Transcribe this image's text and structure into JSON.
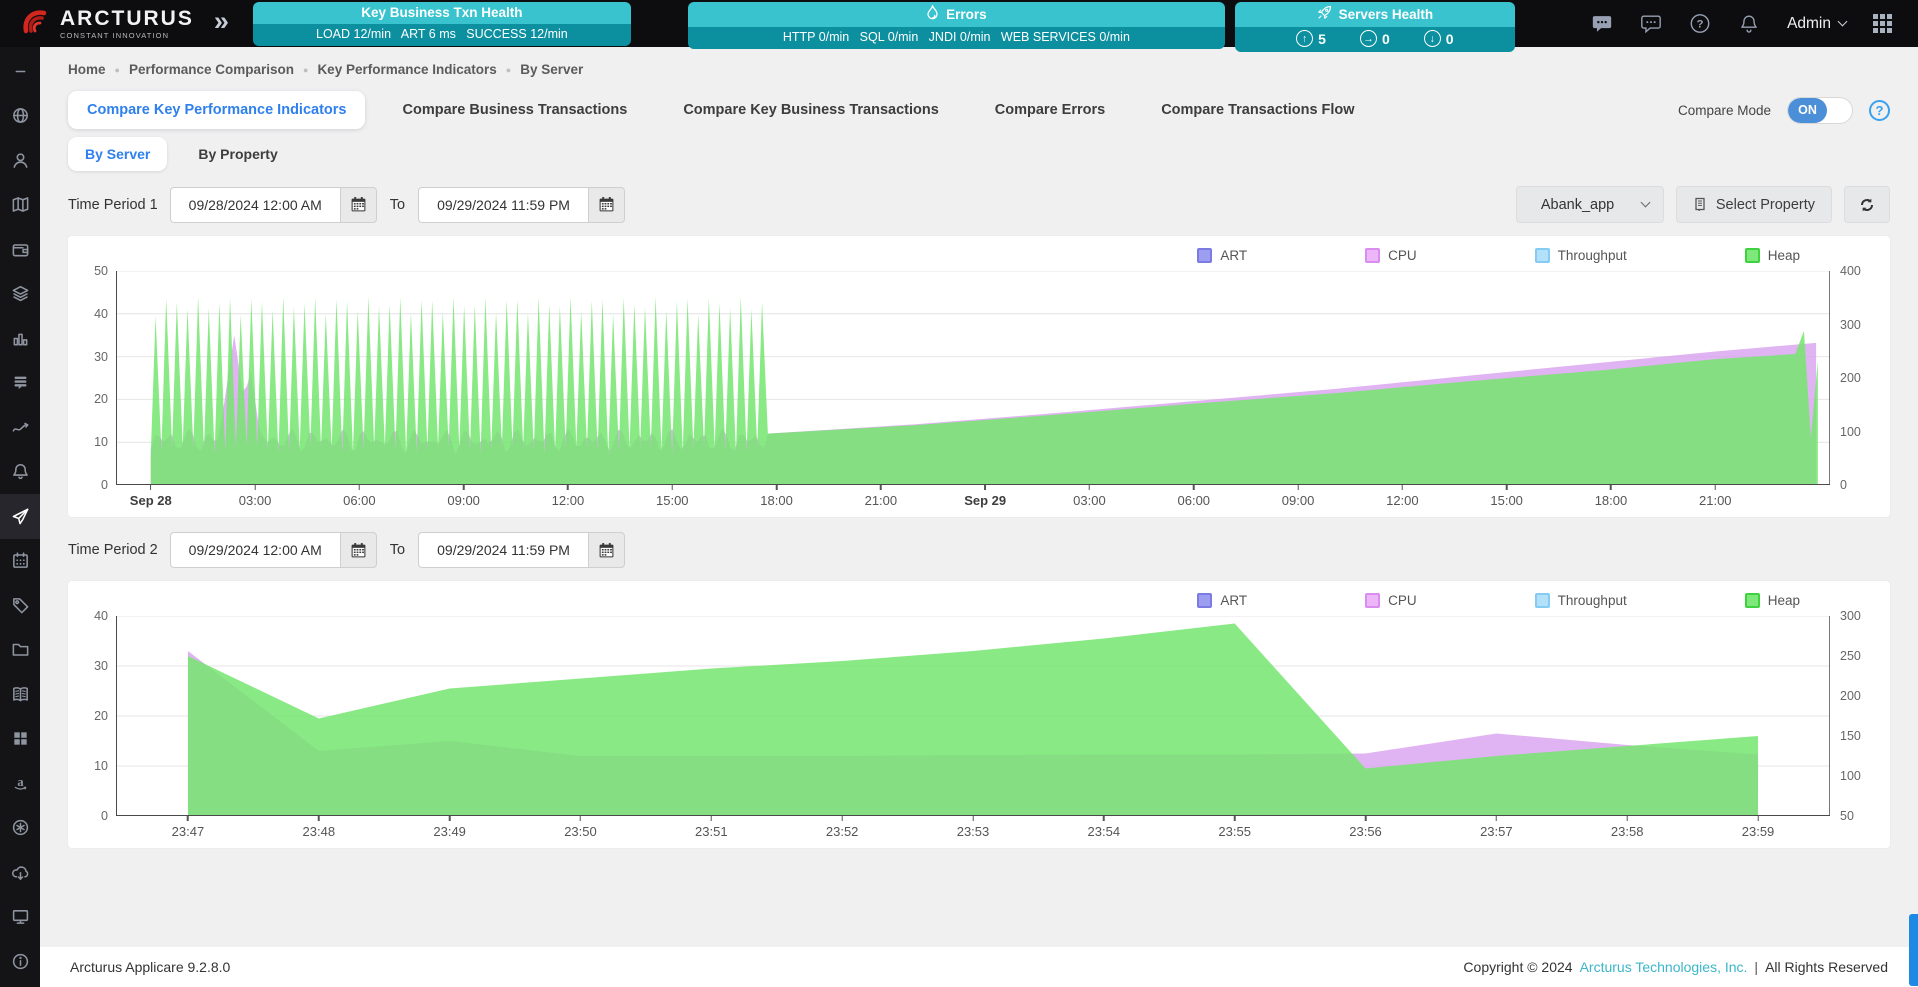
{
  "header": {
    "brand": {
      "name": "ARCTURUS",
      "tagline": "CONSTANT INNOVATION"
    },
    "widgets": [
      {
        "title": "Key Business Txn Health",
        "stats": "LOAD 12/min   ART 6 ms   SUCCESS 12/min"
      },
      {
        "title": "Errors",
        "icon": "flame-icon",
        "stats": "HTTP 0/min   SQL 0/min   JNDI 0/min   WEB SERVICES 0/min"
      },
      {
        "title": "Servers Health",
        "icon": "rocket-icon",
        "stats_items": [
          {
            "icon": "arrow-up-circle-icon",
            "glyph": "↑",
            "value": "5"
          },
          {
            "icon": "arrow-right-circle-icon",
            "glyph": "→",
            "value": "0"
          },
          {
            "icon": "arrow-down-circle-icon",
            "glyph": "↓",
            "value": "0"
          }
        ]
      }
    ],
    "user": "Admin"
  },
  "sidebar": {
    "items": [
      {
        "name": "collapse",
        "icon": "minus-icon"
      },
      {
        "name": "globe",
        "icon": "globe-icon"
      },
      {
        "name": "users",
        "icon": "user-icon"
      },
      {
        "name": "map",
        "icon": "map-icon"
      },
      {
        "name": "wallet",
        "icon": "wallet-icon"
      },
      {
        "name": "layers",
        "icon": "layers-icon"
      },
      {
        "name": "bar-chart",
        "icon": "bar-chart-icon"
      },
      {
        "name": "forum",
        "icon": "forum-icon"
      },
      {
        "name": "trend",
        "icon": "trend-icon"
      },
      {
        "name": "alerts",
        "icon": "bell-icon"
      },
      {
        "name": "comparison",
        "icon": "send-icon",
        "active": true
      },
      {
        "name": "calendar",
        "icon": "calendar-icon"
      },
      {
        "name": "tags",
        "icon": "tag-icon"
      },
      {
        "name": "folders",
        "icon": "folder-icon"
      },
      {
        "name": "library",
        "icon": "book-icon"
      },
      {
        "name": "blocks",
        "icon": "blocks-icon"
      },
      {
        "name": "amazon",
        "icon": "amazon-icon"
      },
      {
        "name": "settings",
        "icon": "asterisk-icon"
      },
      {
        "name": "cloud-download",
        "icon": "cloud-download-icon"
      },
      {
        "name": "monitor",
        "icon": "monitor-icon"
      },
      {
        "name": "info",
        "icon": "info-icon"
      }
    ]
  },
  "breadcrumb": [
    "Home",
    "Performance Comparison",
    "Key Performance Indicators",
    "By Server"
  ],
  "tabs": [
    {
      "label": "Compare Key Performance Indicators",
      "active": true
    },
    {
      "label": "Compare Business Transactions"
    },
    {
      "label": "Compare Key Business Transactions"
    },
    {
      "label": "Compare Errors"
    },
    {
      "label": "Compare Transactions Flow"
    }
  ],
  "subtabs": [
    {
      "label": "By Server",
      "active": true
    },
    {
      "label": "By Property"
    }
  ],
  "compare_mode": {
    "label": "Compare Mode",
    "state": "ON"
  },
  "period1": {
    "label": "Time Period 1",
    "from_value": "09/28/2024 12:00 AM",
    "to_word": "To",
    "to_value": "09/29/2024 11:59 PM"
  },
  "period2": {
    "label": "Time Period 2",
    "from_value": "09/29/2024 12:00 AM",
    "to_word": "To",
    "to_value": "09/29/2024 11:59 PM"
  },
  "toolbar": {
    "app_dropdown_value": "Abank_app",
    "select_property_label": "Select Property"
  },
  "legend": [
    {
      "label": "ART",
      "fill": "#9e9ef0",
      "border": "#7b7be4"
    },
    {
      "label": "CPU",
      "fill": "#edb6f8",
      "border": "#da8cf0"
    },
    {
      "label": "Throughput",
      "fill": "#b3e1fa",
      "border": "#84ccf4"
    },
    {
      "label": "Heap",
      "fill": "#7ee87b",
      "border": "#3fd23f"
    }
  ],
  "chart_data": [
    {
      "type": "area",
      "x_domain": [
        -1,
        48.3
      ],
      "x_unit": "hours from Sep 28 00:00",
      "x_ticks": [
        {
          "label": "Sep 28",
          "x": 0
        },
        {
          "label": "03:00",
          "x": 3
        },
        {
          "label": "06:00",
          "x": 6
        },
        {
          "label": "09:00",
          "x": 9
        },
        {
          "label": "12:00",
          "x": 12
        },
        {
          "label": "15:00",
          "x": 15
        },
        {
          "label": "18:00",
          "x": 18
        },
        {
          "label": "21:00",
          "x": 21
        },
        {
          "label": "Sep 29",
          "x": 24
        },
        {
          "label": "03:00",
          "x": 27
        },
        {
          "label": "06:00",
          "x": 30
        },
        {
          "label": "09:00",
          "x": 33
        },
        {
          "label": "12:00",
          "x": 36
        },
        {
          "label": "15:00",
          "x": 39
        },
        {
          "label": "18:00",
          "x": 42
        },
        {
          "label": "21:00",
          "x": 45
        }
      ],
      "y_left": {
        "max": 50,
        "ticks": [
          0,
          10,
          20,
          30,
          40,
          50
        ]
      },
      "y_right": {
        "ticks": [
          0,
          100,
          200,
          300,
          400
        ]
      },
      "series": [
        {
          "name": "ART",
          "fill": "#9e9ef0",
          "values": []
        },
        {
          "name": "Throughput",
          "fill": "#b3e1fa",
          "values": []
        },
        {
          "name": "CPU",
          "fill": "#dba6f0",
          "opacity": 0.85,
          "pattern": {
            "type": "noise",
            "x": [
              0,
              17.75
            ],
            "base": 8.5,
            "spikes": [
              [
                2.4,
                35
              ],
              [
                2.85,
                28
              ]
            ]
          },
          "points": [
            [
              17.75,
              12
            ],
            [
              22,
              14.2
            ],
            [
              26,
              16.8
            ],
            [
              30,
              19.6
            ],
            [
              34,
              22.4
            ],
            [
              38,
              25.6
            ],
            [
              42,
              28.8
            ],
            [
              45,
              31.2
            ],
            [
              47.9,
              33.2
            ]
          ]
        },
        {
          "name": "Heap",
          "fill": "#74e56e",
          "opacity": 0.85,
          "pattern": {
            "type": "sawtooth",
            "x": [
              0,
              17.75
            ],
            "min": 7,
            "max": 44,
            "cycles": 58
          },
          "points": [
            [
              17.75,
              12
            ],
            [
              22,
              14
            ],
            [
              26,
              16.4
            ],
            [
              30,
              19
            ],
            [
              34,
              21.4
            ],
            [
              38,
              24.3
            ],
            [
              42,
              27
            ],
            [
              45,
              29.4
            ],
            [
              47.3,
              30.6
            ],
            [
              47.55,
              36
            ],
            [
              47.75,
              11
            ],
            [
              47.95,
              29
            ]
          ]
        }
      ]
    },
    {
      "type": "area",
      "x_domain": [
        -0.55,
        12.55
      ],
      "x_unit": "minutes",
      "x_ticks": [
        {
          "label": "23:47",
          "x": 0
        },
        {
          "label": "23:48",
          "x": 1
        },
        {
          "label": "23:49",
          "x": 2
        },
        {
          "label": "23:50",
          "x": 3
        },
        {
          "label": "23:51",
          "x": 4
        },
        {
          "label": "23:52",
          "x": 5
        },
        {
          "label": "23:53",
          "x": 6
        },
        {
          "label": "23:54",
          "x": 7
        },
        {
          "label": "23:55",
          "x": 8
        },
        {
          "label": "23:56",
          "x": 9
        },
        {
          "label": "23:57",
          "x": 10
        },
        {
          "label": "23:58",
          "x": 11
        },
        {
          "label": "23:59",
          "x": 12
        }
      ],
      "y_left": {
        "max": 40,
        "ticks": [
          0,
          10,
          20,
          30,
          40
        ]
      },
      "y_right": {
        "ticks": [
          50,
          100,
          150,
          200,
          250,
          300
        ]
      },
      "series": [
        {
          "name": "ART",
          "fill": "#9e9ef0",
          "values": []
        },
        {
          "name": "Throughput",
          "fill": "#b3e1fa",
          "values": []
        },
        {
          "name": "CPU",
          "fill": "#dba6f0",
          "opacity": 0.85,
          "values": [
            33,
            13,
            15,
            12,
            12,
            12,
            12.2,
            12.3,
            12.3,
            12.5,
            16.5,
            14.2,
            12.3
          ]
        },
        {
          "name": "Heap",
          "fill": "#74e56e",
          "opacity": 0.85,
          "values": [
            32,
            19.5,
            25.5,
            27.5,
            29.5,
            31,
            33,
            35.5,
            38.5,
            9.5,
            12,
            14,
            16
          ]
        }
      ]
    }
  ],
  "footer": {
    "version": "Arcturus Applicare 9.2.8.0",
    "copyright_prefix": "Copyright © 2024",
    "company": "Arcturus Technologies, Inc.",
    "separator": "|",
    "rights": "All Rights Reserved"
  }
}
